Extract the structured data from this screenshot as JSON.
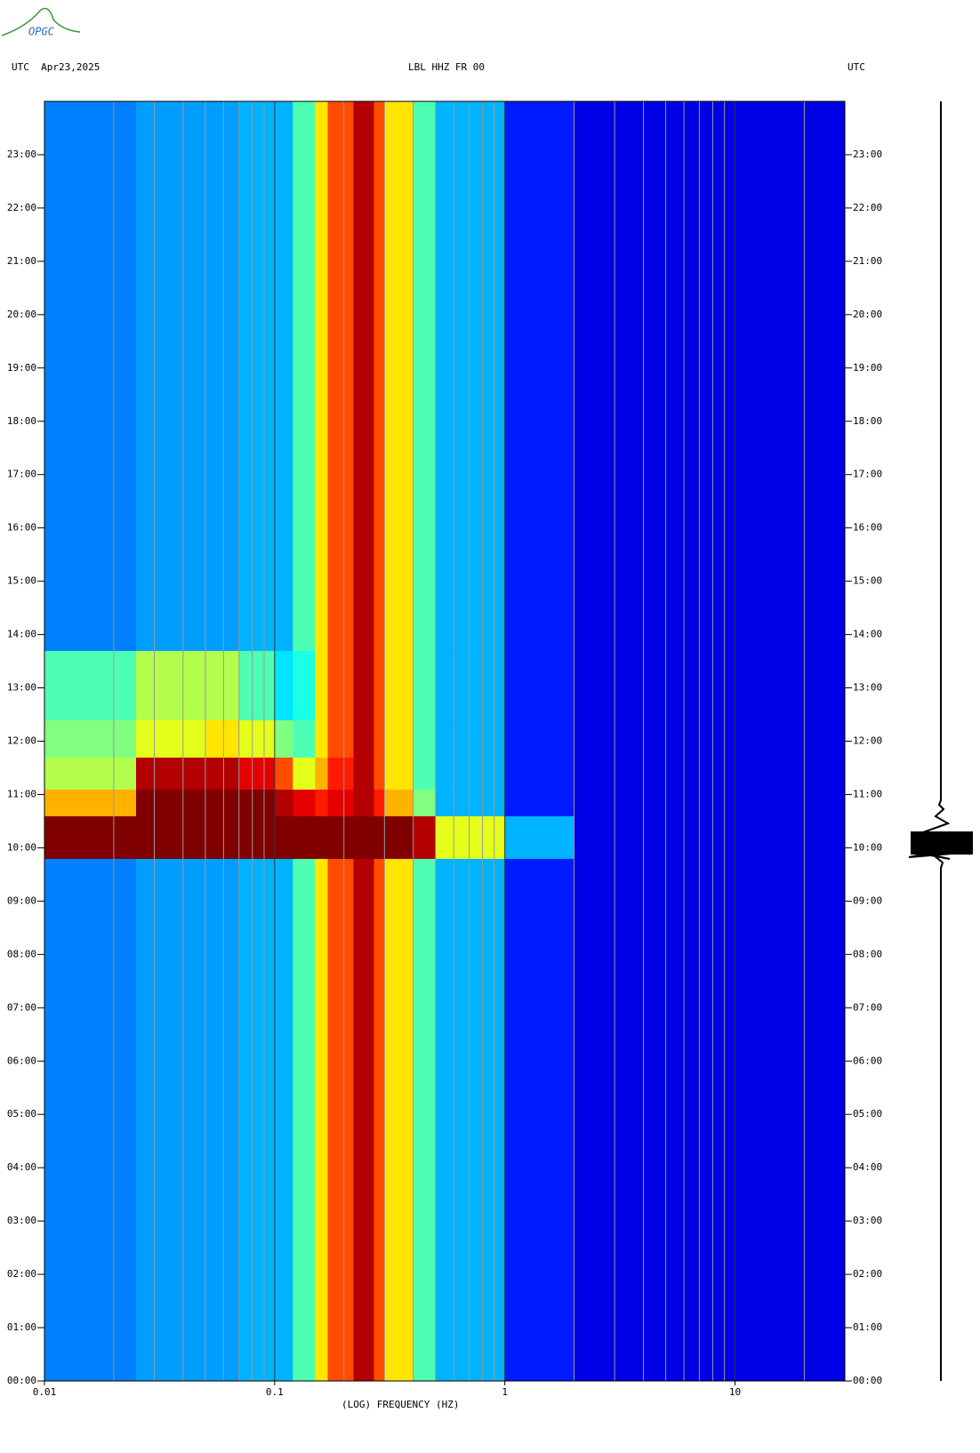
{
  "header": {
    "logo": "OPGC",
    "left": "UTC  Apr23,2025",
    "center": "LBL HHZ FR 00",
    "right": "UTC"
  },
  "chart_data": {
    "type": "heatmap",
    "xlabel": "(LOG) FREQUENCY (HZ)",
    "xscale": "log",
    "colorscale": "jet",
    "grid": true,
    "xlim": [
      0.01,
      30
    ],
    "xticks": [
      0.01,
      0.1,
      1,
      10
    ],
    "xminorticks": [
      0.02,
      0.03,
      0.04,
      0.05,
      0.06,
      0.07,
      0.08,
      0.09,
      0.2,
      0.3,
      0.4,
      0.5,
      0.6,
      0.7,
      0.8,
      0.9,
      2,
      3,
      4,
      5,
      6,
      7,
      8,
      9,
      20
    ],
    "ylim": [
      0,
      24
    ],
    "yticks": [
      {
        "value": 0,
        "label": "00:00"
      },
      {
        "value": 1,
        "label": "01:00"
      },
      {
        "value": 2,
        "label": "02:00"
      },
      {
        "value": 3,
        "label": "03:00"
      },
      {
        "value": 4,
        "label": "04:00"
      },
      {
        "value": 5,
        "label": "05:00"
      },
      {
        "value": 6,
        "label": "06:00"
      },
      {
        "value": 7,
        "label": "07:00"
      },
      {
        "value": 8,
        "label": "08:00"
      },
      {
        "value": 9,
        "label": "09:00"
      },
      {
        "value": 10,
        "label": "10:00"
      },
      {
        "value": 11,
        "label": "11:00"
      },
      {
        "value": 12,
        "label": "12:00"
      },
      {
        "value": 13,
        "label": "13:00"
      },
      {
        "value": 14,
        "label": "14:00"
      },
      {
        "value": 15,
        "label": "15:00"
      },
      {
        "value": 16,
        "label": "16:00"
      },
      {
        "value": 17,
        "label": "17:00"
      },
      {
        "value": 18,
        "label": "18:00"
      },
      {
        "value": 19,
        "label": "19:00"
      },
      {
        "value": 20,
        "label": "20:00"
      },
      {
        "value": 21,
        "label": "21:00"
      },
      {
        "value": 22,
        "label": "22:00"
      },
      {
        "value": 23,
        "label": "23:00"
      }
    ],
    "x_bins": [
      0.01,
      0.025,
      0.05,
      0.07,
      0.1,
      0.12,
      0.15,
      0.17,
      0.22,
      0.27,
      0.3,
      0.4,
      0.5,
      1,
      2,
      30
    ],
    "y_bins": [
      0,
      9.8,
      10.6,
      11.1,
      11.7,
      12.4,
      13.7,
      24
    ],
    "values": [
      [
        0.25,
        0.28,
        0.28,
        0.3,
        0.3,
        0.45,
        0.65,
        0.8,
        0.95,
        0.8,
        0.65,
        0.45,
        0.3,
        0.15,
        0.1
      ],
      [
        1,
        1,
        1,
        1,
        1,
        1,
        1,
        1,
        1,
        1,
        1,
        0.95,
        0.6,
        0.3,
        0.1
      ],
      [
        0.7,
        1,
        1,
        1,
        0.95,
        0.9,
        0.85,
        0.9,
        0.95,
        0.85,
        0.7,
        0.5,
        0.3,
        0.15,
        0.1
      ],
      [
        0.55,
        0.95,
        0.95,
        0.9,
        0.8,
        0.6,
        0.7,
        0.85,
        0.95,
        0.8,
        0.65,
        0.45,
        0.3,
        0.15,
        0.1
      ],
      [
        0.5,
        0.6,
        0.65,
        0.6,
        0.5,
        0.45,
        0.65,
        0.8,
        0.95,
        0.8,
        0.65,
        0.45,
        0.3,
        0.15,
        0.1
      ],
      [
        0.45,
        0.55,
        0.55,
        0.45,
        0.35,
        0.4,
        0.65,
        0.8,
        0.95,
        0.8,
        0.65,
        0.45,
        0.3,
        0.15,
        0.1
      ],
      [
        0.25,
        0.28,
        0.28,
        0.3,
        0.3,
        0.45,
        0.65,
        0.8,
        0.95,
        0.8,
        0.65,
        0.45,
        0.3,
        0.15,
        0.1
      ]
    ]
  }
}
